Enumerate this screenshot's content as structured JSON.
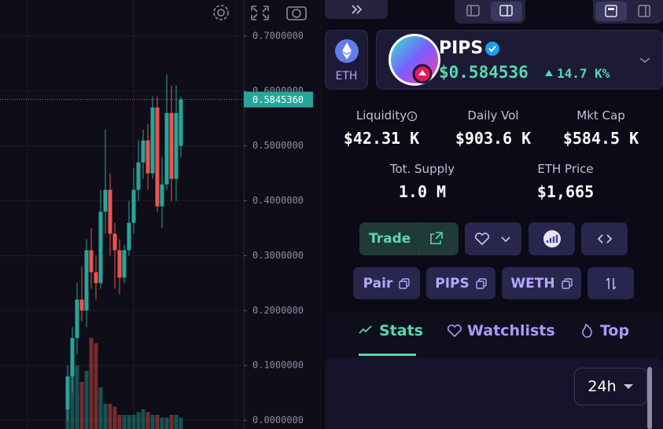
{
  "chart_data": {
    "type": "candlestick",
    "open": [
      0.02,
      0.08,
      0.15,
      0.22,
      0.2,
      0.31,
      0.27,
      0.25,
      0.38,
      0.42,
      0.34,
      0.31,
      0.26,
      0.31,
      0.36,
      0.42,
      0.47,
      0.51,
      0.45,
      0.57,
      0.39,
      0.43,
      0.56,
      0.44,
      0.5
    ],
    "high": [
      0.1,
      0.17,
      0.25,
      0.28,
      0.33,
      0.35,
      0.3,
      0.42,
      0.53,
      0.45,
      0.36,
      0.33,
      0.32,
      0.4,
      0.46,
      0.51,
      0.53,
      0.54,
      0.59,
      0.59,
      0.48,
      0.63,
      0.61,
      0.61,
      0.59
    ],
    "low": [
      0.0,
      0.05,
      0.12,
      0.18,
      0.17,
      0.24,
      0.22,
      0.24,
      0.34,
      0.3,
      0.24,
      0.23,
      0.25,
      0.3,
      0.34,
      0.4,
      0.44,
      0.42,
      0.44,
      0.38,
      0.35,
      0.42,
      0.4,
      0.4,
      0.48
    ],
    "close": [
      0.08,
      0.15,
      0.22,
      0.2,
      0.31,
      0.27,
      0.25,
      0.38,
      0.42,
      0.34,
      0.31,
      0.26,
      0.31,
      0.36,
      0.42,
      0.47,
      0.51,
      0.45,
      0.57,
      0.39,
      0.43,
      0.56,
      0.44,
      0.56,
      0.584536
    ],
    "volume": [
      0.6,
      1.3,
      1.0,
      0.7,
      0.9,
      1.5,
      1.4,
      0.6,
      0.3,
      0.3,
      0.25,
      0.1,
      0.1,
      0.1,
      0.1,
      0.15,
      0.2,
      0.15,
      0.1,
      0.1,
      0.05,
      0.05,
      0.1,
      0.1,
      0.05
    ],
    "up_color": "#26a69a",
    "down_color": "#ef5350",
    "ylim": [
      0,
      0.7
    ],
    "yticks": [
      {
        "value": 0,
        "label": "0.0000000"
      },
      {
        "value": 0.1,
        "label": "0.1000000"
      },
      {
        "value": 0.2,
        "label": "0.2000000"
      },
      {
        "value": 0.3,
        "label": "0.3000000"
      },
      {
        "value": 0.4,
        "label": "0.4000000"
      },
      {
        "value": 0.5,
        "label": "0.5000000"
      },
      {
        "value": 0.6,
        "label": "0.6000000"
      },
      {
        "value": 0.7,
        "label": "0.7000000"
      }
    ],
    "last_price": {
      "value": 0.584536,
      "label": "0.5845360"
    },
    "grid": true
  },
  "chain": "ETH",
  "token": {
    "name": "PIPS",
    "price": "$0.584536",
    "change": "14.7 K%"
  },
  "stats": [
    {
      "label": "Liquidity",
      "value": "$42.31 K"
    },
    {
      "label": "Daily Vol",
      "value": "$903.6 K"
    },
    {
      "label": "Mkt Cap",
      "value": "$584.5 K"
    },
    {
      "label": "Tot. Supply",
      "value": "1.0 M"
    },
    {
      "label": "ETH Price",
      "value": "$1,665"
    }
  ],
  "buttons": {
    "trade": "Trade",
    "pairs": [
      "Pair",
      "PIPS",
      "WETH"
    ]
  },
  "tabs": [
    "Stats",
    "Watchlists",
    "Top"
  ],
  "period": "24h"
}
